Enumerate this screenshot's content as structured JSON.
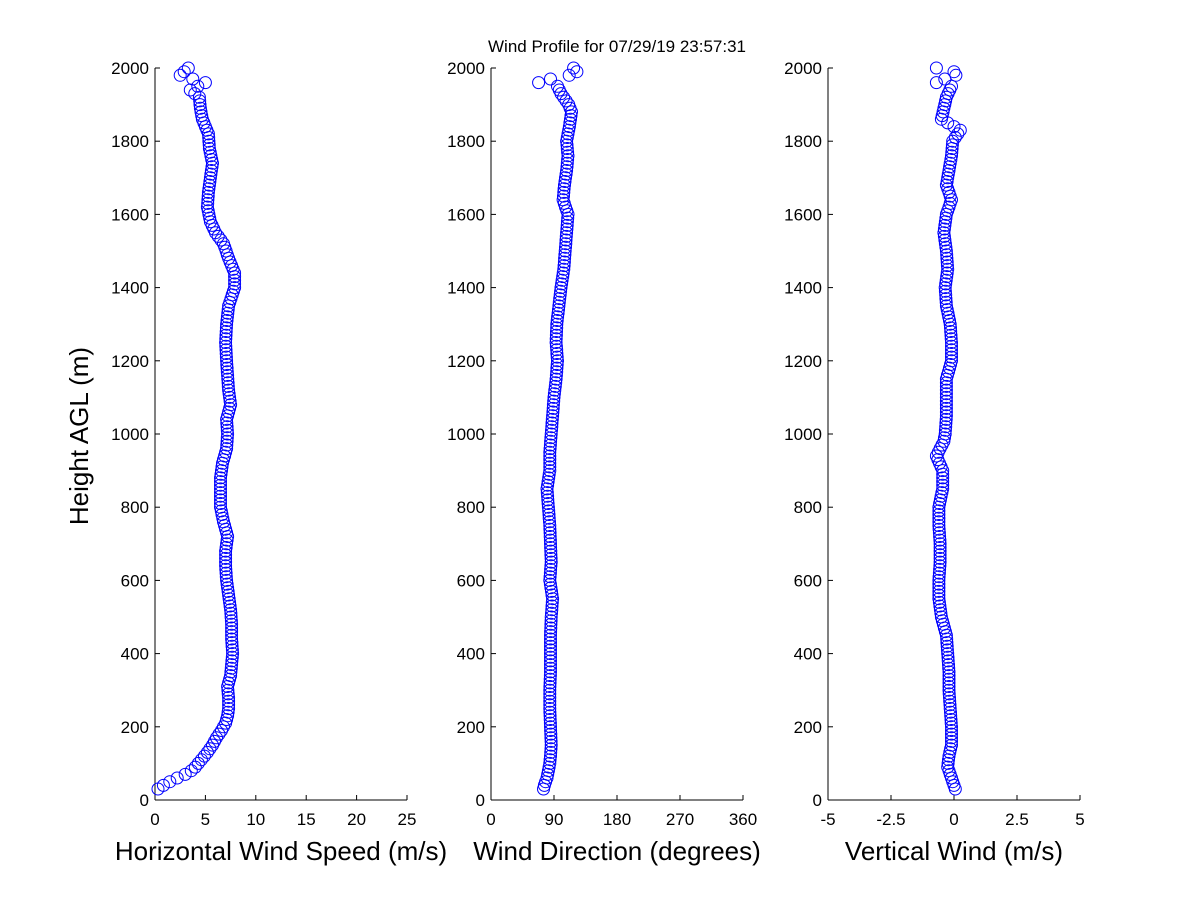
{
  "chart_data": {
    "title": "Wind Profile for  07/29/19 23:57:31",
    "ylabel": "Height AGL (m)",
    "ylim": [
      0,
      2000
    ],
    "yticks": [
      0,
      200,
      400,
      600,
      800,
      1000,
      1200,
      1400,
      1600,
      1800,
      2000
    ],
    "marker": "circle",
    "marker_color": "#0000ff",
    "grid": false,
    "panels": [
      {
        "id": "speed",
        "type": "scatter",
        "xlabel": "Horizontal Wind Speed (m/s)",
        "xlim": [
          0,
          25
        ],
        "xticks": [
          0,
          5,
          10,
          15,
          20,
          25
        ],
        "xtick_labels": [
          "0",
          "5",
          "10",
          "15",
          "20",
          "25"
        ],
        "profile": [
          [
            30,
            0.3
          ],
          [
            45,
            1.1
          ],
          [
            60,
            2.2
          ],
          [
            75,
            3.4
          ],
          [
            90,
            4.0
          ],
          [
            110,
            4.6
          ],
          [
            130,
            5.2
          ],
          [
            150,
            5.7
          ],
          [
            170,
            6.1
          ],
          [
            190,
            6.6
          ],
          [
            210,
            7.0
          ],
          [
            230,
            7.2
          ],
          [
            250,
            7.3
          ],
          [
            280,
            7.3
          ],
          [
            310,
            7.2
          ],
          [
            340,
            7.5
          ],
          [
            370,
            7.6
          ],
          [
            400,
            7.7
          ],
          [
            440,
            7.6
          ],
          [
            480,
            7.6
          ],
          [
            520,
            7.5
          ],
          [
            560,
            7.3
          ],
          [
            600,
            7.1
          ],
          [
            640,
            7.0
          ],
          [
            680,
            7.0
          ],
          [
            720,
            7.2
          ],
          [
            760,
            6.8
          ],
          [
            800,
            6.5
          ],
          [
            840,
            6.5
          ],
          [
            880,
            6.5
          ],
          [
            920,
            6.7
          ],
          [
            960,
            7.1
          ],
          [
            1000,
            7.2
          ],
          [
            1040,
            7.1
          ],
          [
            1080,
            7.5
          ],
          [
            1120,
            7.3
          ],
          [
            1160,
            7.2
          ],
          [
            1200,
            7.1
          ],
          [
            1250,
            7.0
          ],
          [
            1300,
            7.1
          ],
          [
            1350,
            7.3
          ],
          [
            1400,
            7.9
          ],
          [
            1440,
            7.9
          ],
          [
            1480,
            7.3
          ],
          [
            1520,
            6.8
          ],
          [
            1550,
            6.0
          ],
          [
            1580,
            5.5
          ],
          [
            1620,
            5.2
          ],
          [
            1660,
            5.3
          ],
          [
            1700,
            5.5
          ],
          [
            1740,
            5.7
          ],
          [
            1780,
            5.4
          ],
          [
            1820,
            5.3
          ],
          [
            1860,
            4.7
          ],
          [
            1890,
            4.5
          ],
          [
            1920,
            4.4
          ],
          [
            1940,
            3.5
          ],
          [
            1960,
            5.0
          ],
          [
            1980,
            2.5
          ],
          [
            2000,
            3.3
          ]
        ]
      },
      {
        "id": "direction",
        "type": "scatter",
        "xlabel": "Wind Direction (degrees)",
        "xlim": [
          0,
          360
        ],
        "xticks": [
          0,
          90,
          180,
          270,
          360
        ],
        "xtick_labels": [
          "0",
          "90",
          "180",
          "270",
          "360"
        ],
        "profile": [
          [
            30,
            75
          ],
          [
            45,
            77
          ],
          [
            60,
            80
          ],
          [
            80,
            82
          ],
          [
            100,
            84
          ],
          [
            120,
            85
          ],
          [
            150,
            86
          ],
          [
            200,
            85
          ],
          [
            250,
            84
          ],
          [
            300,
            84
          ],
          [
            350,
            85
          ],
          [
            400,
            85
          ],
          [
            450,
            85
          ],
          [
            500,
            86
          ],
          [
            550,
            88
          ],
          [
            600,
            84
          ],
          [
            650,
            86
          ],
          [
            700,
            85
          ],
          [
            750,
            84
          ],
          [
            800,
            82
          ],
          [
            850,
            80
          ],
          [
            900,
            84
          ],
          [
            950,
            84
          ],
          [
            1000,
            86
          ],
          [
            1050,
            88
          ],
          [
            1100,
            90
          ],
          [
            1150,
            93
          ],
          [
            1200,
            95
          ],
          [
            1250,
            93
          ],
          [
            1300,
            94
          ],
          [
            1350,
            97
          ],
          [
            1400,
            100
          ],
          [
            1450,
            104
          ],
          [
            1500,
            106
          ],
          [
            1550,
            108
          ],
          [
            1600,
            110
          ],
          [
            1640,
            103
          ],
          [
            1680,
            105
          ],
          [
            1720,
            108
          ],
          [
            1760,
            110
          ],
          [
            1800,
            108
          ],
          [
            1840,
            112
          ],
          [
            1880,
            115
          ],
          [
            1900,
            111
          ],
          [
            1930,
            100
          ],
          [
            1950,
            95
          ],
          [
            1960,
            68
          ],
          [
            1970,
            85
          ],
          [
            1985,
            125
          ],
          [
            2000,
            118
          ]
        ]
      },
      {
        "id": "vertical",
        "type": "scatter",
        "xlabel": "Vertical Wind (m/s)",
        "xlim": [
          -5,
          5
        ],
        "xticks": [
          -5,
          -2.5,
          0,
          2.5,
          5
        ],
        "xtick_labels": [
          "-5",
          "-2.5",
          "0",
          "2.5",
          "5"
        ],
        "profile": [
          [
            30,
            0.05
          ],
          [
            60,
            -0.1
          ],
          [
            90,
            -0.25
          ],
          [
            120,
            -0.2
          ],
          [
            150,
            -0.1
          ],
          [
            200,
            -0.1
          ],
          [
            250,
            -0.15
          ],
          [
            300,
            -0.2
          ],
          [
            350,
            -0.2
          ],
          [
            400,
            -0.25
          ],
          [
            450,
            -0.3
          ],
          [
            500,
            -0.5
          ],
          [
            550,
            -0.6
          ],
          [
            600,
            -0.6
          ],
          [
            650,
            -0.55
          ],
          [
            700,
            -0.55
          ],
          [
            750,
            -0.6
          ],
          [
            800,
            -0.6
          ],
          [
            850,
            -0.45
          ],
          [
            900,
            -0.45
          ],
          [
            940,
            -0.7
          ],
          [
            980,
            -0.4
          ],
          [
            1000,
            -0.35
          ],
          [
            1050,
            -0.3
          ],
          [
            1100,
            -0.3
          ],
          [
            1150,
            -0.3
          ],
          [
            1200,
            -0.1
          ],
          [
            1250,
            -0.1
          ],
          [
            1300,
            -0.15
          ],
          [
            1350,
            -0.3
          ],
          [
            1400,
            -0.35
          ],
          [
            1450,
            -0.25
          ],
          [
            1500,
            -0.3
          ],
          [
            1550,
            -0.4
          ],
          [
            1600,
            -0.3
          ],
          [
            1640,
            -0.1
          ],
          [
            1680,
            -0.3
          ],
          [
            1720,
            -0.2
          ],
          [
            1760,
            -0.1
          ],
          [
            1800,
            -0.05
          ],
          [
            1830,
            0.25
          ],
          [
            1860,
            -0.5
          ],
          [
            1890,
            -0.4
          ],
          [
            1920,
            -0.3
          ],
          [
            1950,
            -0.1
          ],
          [
            1960,
            -0.7
          ],
          [
            1975,
            -0.2
          ],
          [
            1985,
            0.35
          ],
          [
            2000,
            -0.7
          ]
        ]
      }
    ]
  }
}
